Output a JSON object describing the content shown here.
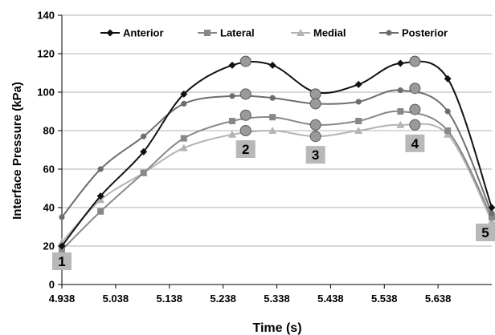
{
  "chart_data": {
    "type": "line",
    "title": "",
    "xlabel": "Time (s)",
    "ylabel": "Interface Pressure (kPa)",
    "xlim": [
      4.938,
      5.738
    ],
    "ylim": [
      0,
      140
    ],
    "x_ticks": [
      4.938,
      5.038,
      5.138,
      5.238,
      5.338,
      5.438,
      5.538,
      5.638
    ],
    "y_ticks": [
      0,
      20,
      40,
      60,
      80,
      100,
      120,
      140
    ],
    "grid": "horizontal",
    "legend_position": "top",
    "series": [
      {
        "name": "Anterior",
        "color": "#111111",
        "marker": "diamond",
        "x": [
          4.938,
          5.01,
          5.09,
          5.165,
          5.255,
          5.33,
          5.41,
          5.49,
          5.568,
          5.656,
          5.738
        ],
        "y": [
          20,
          46,
          69,
          99,
          114,
          114,
          100,
          104,
          115,
          107,
          40
        ]
      },
      {
        "name": "Lateral",
        "color": "#888888",
        "marker": "square",
        "x": [
          4.938,
          5.01,
          5.09,
          5.165,
          5.255,
          5.33,
          5.41,
          5.49,
          5.568,
          5.656,
          5.738
        ],
        "y": [
          18,
          38,
          58,
          76,
          85,
          87,
          83,
          85,
          90,
          80,
          35
        ]
      },
      {
        "name": "Medial",
        "color": "#b4b4b4",
        "marker": "triangle",
        "x": [
          4.938,
          5.01,
          5.09,
          5.165,
          5.255,
          5.33,
          5.41,
          5.49,
          5.568,
          5.656,
          5.738
        ],
        "y": [
          22,
          44,
          58,
          71,
          78,
          80,
          77,
          80,
          83,
          78,
          33
        ]
      },
      {
        "name": "Posterior",
        "color": "#6e6e6e",
        "marker": "circle",
        "x": [
          4.938,
          5.01,
          5.09,
          5.165,
          5.255,
          5.33,
          5.41,
          5.49,
          5.568,
          5.656,
          5.738
        ],
        "y": [
          35,
          60,
          77,
          94,
          98,
          97,
          94,
          95,
          101,
          90,
          37
        ]
      }
    ],
    "highlight_points": [
      {
        "x": 5.28,
        "y": 116
      },
      {
        "x": 5.28,
        "y": 99
      },
      {
        "x": 5.28,
        "y": 88
      },
      {
        "x": 5.28,
        "y": 80
      },
      {
        "x": 5.41,
        "y": 99
      },
      {
        "x": 5.41,
        "y": 94
      },
      {
        "x": 5.41,
        "y": 83
      },
      {
        "x": 5.41,
        "y": 77
      },
      {
        "x": 5.595,
        "y": 116
      },
      {
        "x": 5.595,
        "y": 102
      },
      {
        "x": 5.595,
        "y": 91
      },
      {
        "x": 5.595,
        "y": 83
      }
    ],
    "phase_labels": [
      {
        "text": "1",
        "x": 4.938,
        "y": 20
      },
      {
        "text": "2",
        "x": 5.28,
        "y": 80
      },
      {
        "text": "3",
        "x": 5.41,
        "y": 77
      },
      {
        "text": "4",
        "x": 5.595,
        "y": 83
      },
      {
        "text": "5",
        "x": 5.738,
        "y": 35
      }
    ]
  }
}
